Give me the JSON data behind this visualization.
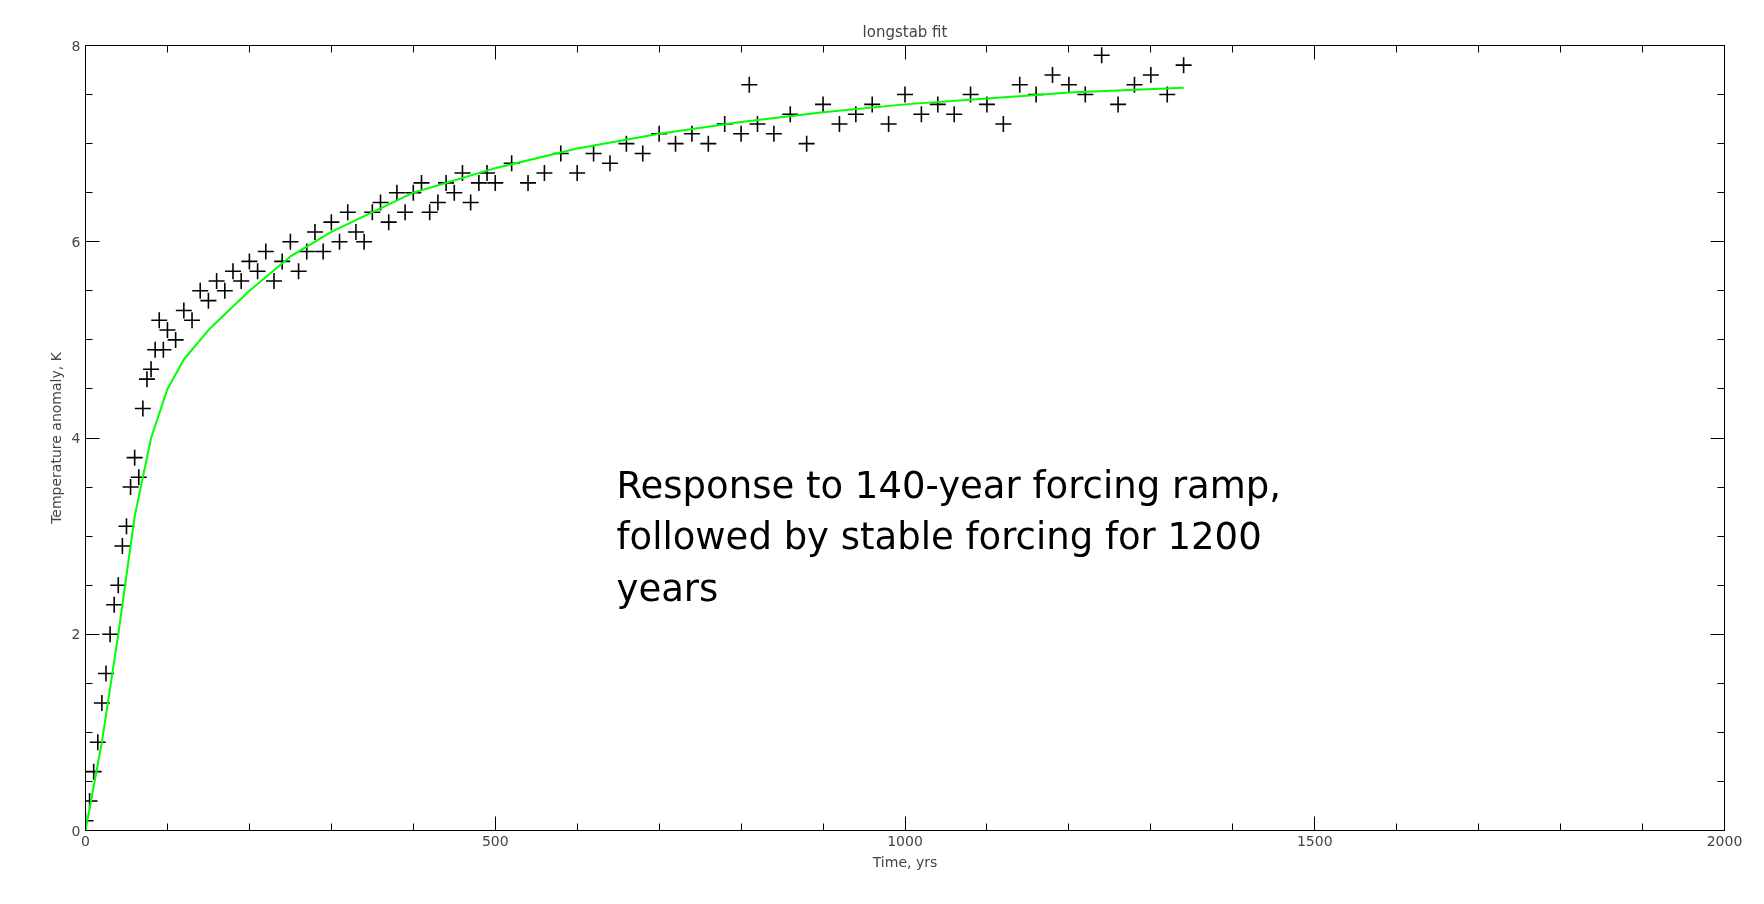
{
  "chart_data": {
    "type": "scatter",
    "title": "longstab fit",
    "xlabel": "Time, yrs",
    "ylabel": "Temperature anomaly, K",
    "annotations": [
      "Response to 140-year forcing ramp, followed by stable forcing for 1200 years"
    ],
    "xlim": [
      0,
      2000
    ],
    "xticks": [
      0,
      500,
      1000,
      1500,
      2000
    ],
    "ylim": [
      0,
      8
    ],
    "yticks": [
      0,
      2,
      4,
      6,
      8
    ],
    "grid": false,
    "marker": "cross",
    "series": [
      {
        "color": "#000000",
        "x": [
          0,
          5,
          10,
          15,
          20,
          25,
          30,
          35,
          40,
          45,
          50,
          55,
          60,
          65,
          70,
          75,
          80,
          85,
          90,
          95,
          100,
          110,
          120,
          130,
          140,
          150,
          160,
          170,
          180,
          190,
          200,
          210,
          220,
          230,
          240,
          250,
          260,
          270,
          280,
          290,
          300,
          310,
          320,
          330,
          340,
          350,
          360,
          370,
          380,
          390,
          400,
          410,
          420,
          430,
          440,
          450,
          460,
          470,
          480,
          490,
          500,
          520,
          540,
          560,
          580,
          600,
          620,
          640,
          660,
          680,
          700,
          720,
          740,
          760,
          780,
          800,
          810,
          820,
          840,
          860,
          880,
          900,
          920,
          940,
          960,
          980,
          1000,
          1020,
          1040,
          1060,
          1080,
          1100,
          1120,
          1140,
          1160,
          1180,
          1200,
          1220,
          1240,
          1260,
          1280,
          1300,
          1320,
          1340
        ],
        "values": [
          0.1,
          0.3,
          0.6,
          0.9,
          1.3,
          1.6,
          2.0,
          2.3,
          2.5,
          2.9,
          3.1,
          3.5,
          3.8,
          3.6,
          4.3,
          4.6,
          4.7,
          4.9,
          5.2,
          4.9,
          5.1,
          5.0,
          5.3,
          5.2,
          5.5,
          5.4,
          5.6,
          5.5,
          5.7,
          5.6,
          5.8,
          5.7,
          5.9,
          5.6,
          5.8,
          6.0,
          5.7,
          5.9,
          6.1,
          5.9,
          6.2,
          6.0,
          6.3,
          6.1,
          6.0,
          6.3,
          6.4,
          6.2,
          6.5,
          6.3,
          6.5,
          6.6,
          6.3,
          6.4,
          6.6,
          6.5,
          6.7,
          6.4,
          6.6,
          6.7,
          6.6,
          6.8,
          6.6,
          6.7,
          6.9,
          6.7,
          6.9,
          6.8,
          7.0,
          6.9,
          7.1,
          7.0,
          7.1,
          7.0,
          7.2,
          7.1,
          7.6,
          7.2,
          7.1,
          7.3,
          7.0,
          7.4,
          7.2,
          7.3,
          7.4,
          7.2,
          7.5,
          7.3,
          7.4,
          7.3,
          7.5,
          7.4,
          7.2,
          7.6,
          7.5,
          7.7,
          7.6,
          7.5,
          7.9,
          7.4,
          7.6,
          7.7,
          7.5,
          7.8
        ]
      },
      {
        "type": "line",
        "color": "#00ff00",
        "marker": "none",
        "x": [
          0,
          20,
          40,
          60,
          80,
          100,
          120,
          150,
          200,
          250,
          300,
          400,
          500,
          600,
          700,
          800,
          900,
          1000,
          1100,
          1200,
          1340
        ],
        "values": [
          0,
          0.9,
          2.0,
          3.2,
          4.0,
          4.5,
          4.8,
          5.1,
          5.5,
          5.85,
          6.1,
          6.5,
          6.75,
          6.95,
          7.1,
          7.22,
          7.32,
          7.4,
          7.46,
          7.52,
          7.57
        ]
      }
    ]
  }
}
